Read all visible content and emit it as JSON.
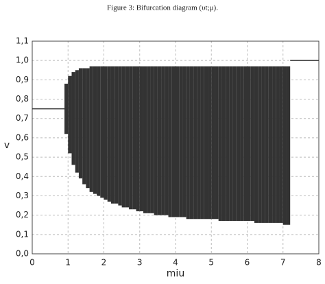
{
  "chart_data": {
    "type": "bifurcation",
    "title": "Figure 3: Bifurcation diagram (υt;μ).",
    "xlabel": "miu",
    "ylabel": "v",
    "xlim": [
      0,
      8
    ],
    "ylim": [
      0,
      1.1
    ],
    "xticks": [
      0,
      1,
      2,
      3,
      4,
      5,
      6,
      7,
      8
    ],
    "yticks": [
      {
        "value": 0,
        "label": "0,0"
      },
      {
        "value": 0.1,
        "label": "0,1"
      },
      {
        "value": 0.2,
        "label": "0,2"
      },
      {
        "value": 0.3,
        "label": "0,3"
      },
      {
        "value": 0.4,
        "label": "0,4"
      },
      {
        "value": 0.5,
        "label": "0,5"
      },
      {
        "value": 0.6,
        "label": "0,6"
      },
      {
        "value": 0.7,
        "label": "0,7"
      },
      {
        "value": 0.8,
        "label": "0,8"
      },
      {
        "value": 0.9,
        "label": "0,9"
      },
      {
        "value": 1.0,
        "label": "1,0"
      },
      {
        "value": 1.1,
        "label": "1,1"
      }
    ],
    "grid": true,
    "color": "#333333",
    "bands": {
      "x": [
        0.9,
        1.0,
        1.1,
        1.2,
        1.3,
        1.4,
        1.5,
        1.6,
        1.7,
        1.8,
        1.9,
        2.0,
        2.1,
        2.2,
        2.3,
        2.4,
        2.5,
        2.6,
        2.7,
        2.8,
        2.9,
        3.0,
        3.1,
        3.2,
        3.3,
        3.4,
        3.5,
        3.6,
        3.7,
        3.8,
        3.9,
        4.0,
        4.1,
        4.2,
        4.3,
        4.4,
        4.5,
        4.6,
        4.7,
        4.8,
        4.9,
        5.0,
        5.1,
        5.2,
        5.3,
        5.4,
        5.5,
        5.6,
        5.7,
        5.8,
        5.9,
        6.0,
        6.1,
        6.2,
        6.3,
        6.4,
        6.5,
        6.6,
        6.7,
        6.8,
        6.9,
        7.0,
        7.1
      ],
      "low": [
        0.62,
        0.52,
        0.46,
        0.42,
        0.39,
        0.36,
        0.34,
        0.32,
        0.31,
        0.3,
        0.29,
        0.28,
        0.27,
        0.26,
        0.26,
        0.25,
        0.24,
        0.24,
        0.23,
        0.23,
        0.22,
        0.22,
        0.21,
        0.21,
        0.21,
        0.2,
        0.2,
        0.2,
        0.2,
        0.19,
        0.19,
        0.19,
        0.19,
        0.19,
        0.18,
        0.18,
        0.18,
        0.18,
        0.18,
        0.18,
        0.18,
        0.18,
        0.18,
        0.17,
        0.17,
        0.17,
        0.17,
        0.17,
        0.17,
        0.17,
        0.17,
        0.17,
        0.17,
        0.16,
        0.16,
        0.16,
        0.16,
        0.16,
        0.16,
        0.16,
        0.16,
        0.15,
        0.15
      ],
      "high": [
        0.88,
        0.92,
        0.94,
        0.95,
        0.96,
        0.96,
        0.96,
        0.97,
        0.97,
        0.97,
        0.97,
        0.97,
        0.97,
        0.97,
        0.97,
        0.97,
        0.97,
        0.97,
        0.97,
        0.97,
        0.97,
        0.97,
        0.97,
        0.97,
        0.97,
        0.97,
        0.97,
        0.97,
        0.97,
        0.97,
        0.97,
        0.97,
        0.97,
        0.97,
        0.97,
        0.97,
        0.97,
        0.97,
        0.97,
        0.97,
        0.97,
        0.97,
        0.97,
        0.97,
        0.97,
        0.97,
        0.97,
        0.97,
        0.97,
        0.97,
        0.97,
        0.97,
        0.97,
        0.97,
        0.97,
        0.97,
        0.97,
        0.97,
        0.97,
        0.97,
        0.97,
        0.97,
        0.97
      ]
    },
    "lines": [
      {
        "x": [
          0,
          0.9
        ],
        "values": [
          0.75,
          0.75
        ]
      },
      {
        "x": [
          7.2,
          8
        ],
        "values": [
          1.0,
          1.0
        ]
      }
    ]
  }
}
